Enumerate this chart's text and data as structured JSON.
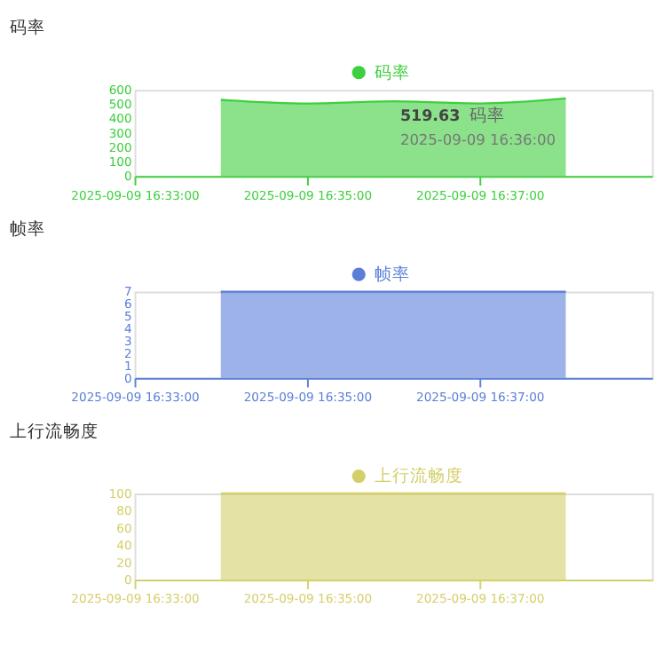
{
  "chart_data": [
    {
      "type": "area",
      "title": "码率",
      "x": [
        "2025-09-09T16:34",
        "2025-09-09T16:35",
        "2025-09-09T16:36",
        "2025-09-09T16:37",
        "2025-09-09T16:38"
      ],
      "series": [
        {
          "name": "码率",
          "color": "#3ecf3e",
          "values": [
            530,
            505,
            519.63,
            505,
            540
          ]
        }
      ],
      "xlim": [
        "2025-09-09T16:33",
        "2025-09-09T16:39"
      ],
      "xticks": [
        {
          "value": "2025-09-09T16:33",
          "label": "2025-09-09 16:33:00"
        },
        {
          "value": "2025-09-09T16:35",
          "label": "2025-09-09 16:35:00"
        },
        {
          "value": "2025-09-09T16:37",
          "label": "2025-09-09 16:37:00"
        }
      ],
      "ylim": [
        0,
        600
      ],
      "yticks": [
        0,
        100,
        200,
        300,
        400,
        500,
        600
      ],
      "annotations": [
        "2025-09-09 16:36:00",
        {
          "text": "519.63",
          "x": "2025-09-09T16:36",
          "y": 519.63
        }
      ],
      "legend": "top",
      "grid": false,
      "marker": "none"
    },
    {
      "type": "area",
      "title": "帧率",
      "x": [
        "2025-09-09T16:34",
        "2025-09-09T16:35",
        "2025-09-09T16:36",
        "2025-09-09T16:37",
        "2025-09-09T16:38"
      ],
      "series": [
        {
          "name": "帧率",
          "color": "#5b7fd9",
          "values": [
            7,
            7,
            7,
            7,
            7
          ]
        }
      ],
      "xlim": [
        "2025-09-09T16:33",
        "2025-09-09T16:39"
      ],
      "xticks": [
        {
          "value": "2025-09-09T16:33",
          "label": "2025-09-09 16:33:00"
        },
        {
          "value": "2025-09-09T16:35",
          "label": "2025-09-09 16:35:00"
        },
        {
          "value": "2025-09-09T16:37",
          "label": "2025-09-09 16:37:00"
        }
      ],
      "ylim": [
        0,
        7
      ],
      "yticks": [
        0,
        1,
        2,
        3,
        4,
        5,
        6,
        7
      ],
      "legend": "top",
      "grid": false,
      "marker": "none"
    },
    {
      "type": "area",
      "title": "上行流畅度",
      "x": [
        "2025-09-09T16:34",
        "2025-09-09T16:35",
        "2025-09-09T16:36",
        "2025-09-09T16:37",
        "2025-09-09T16:38"
      ],
      "series": [
        {
          "name": "上行流畅度",
          "color": "#d4cf6a",
          "values": [
            100,
            100,
            100,
            100,
            100
          ]
        }
      ],
      "xlim": [
        "2025-09-09T16:33",
        "2025-09-09T16:39"
      ],
      "xticks": [
        {
          "value": "2025-09-09T16:33",
          "label": "2025-09-09 16:33:00"
        },
        {
          "value": "2025-09-09T16:35",
          "label": "2025-09-09 16:35:00"
        },
        {
          "value": "2025-09-09T16:37",
          "label": "2025-09-09 16:37:00"
        }
      ],
      "ylim": [
        0,
        100
      ],
      "yticks": [
        0,
        20,
        40,
        60,
        80,
        100
      ],
      "legend": "top",
      "grid": false,
      "marker": "none"
    }
  ]
}
